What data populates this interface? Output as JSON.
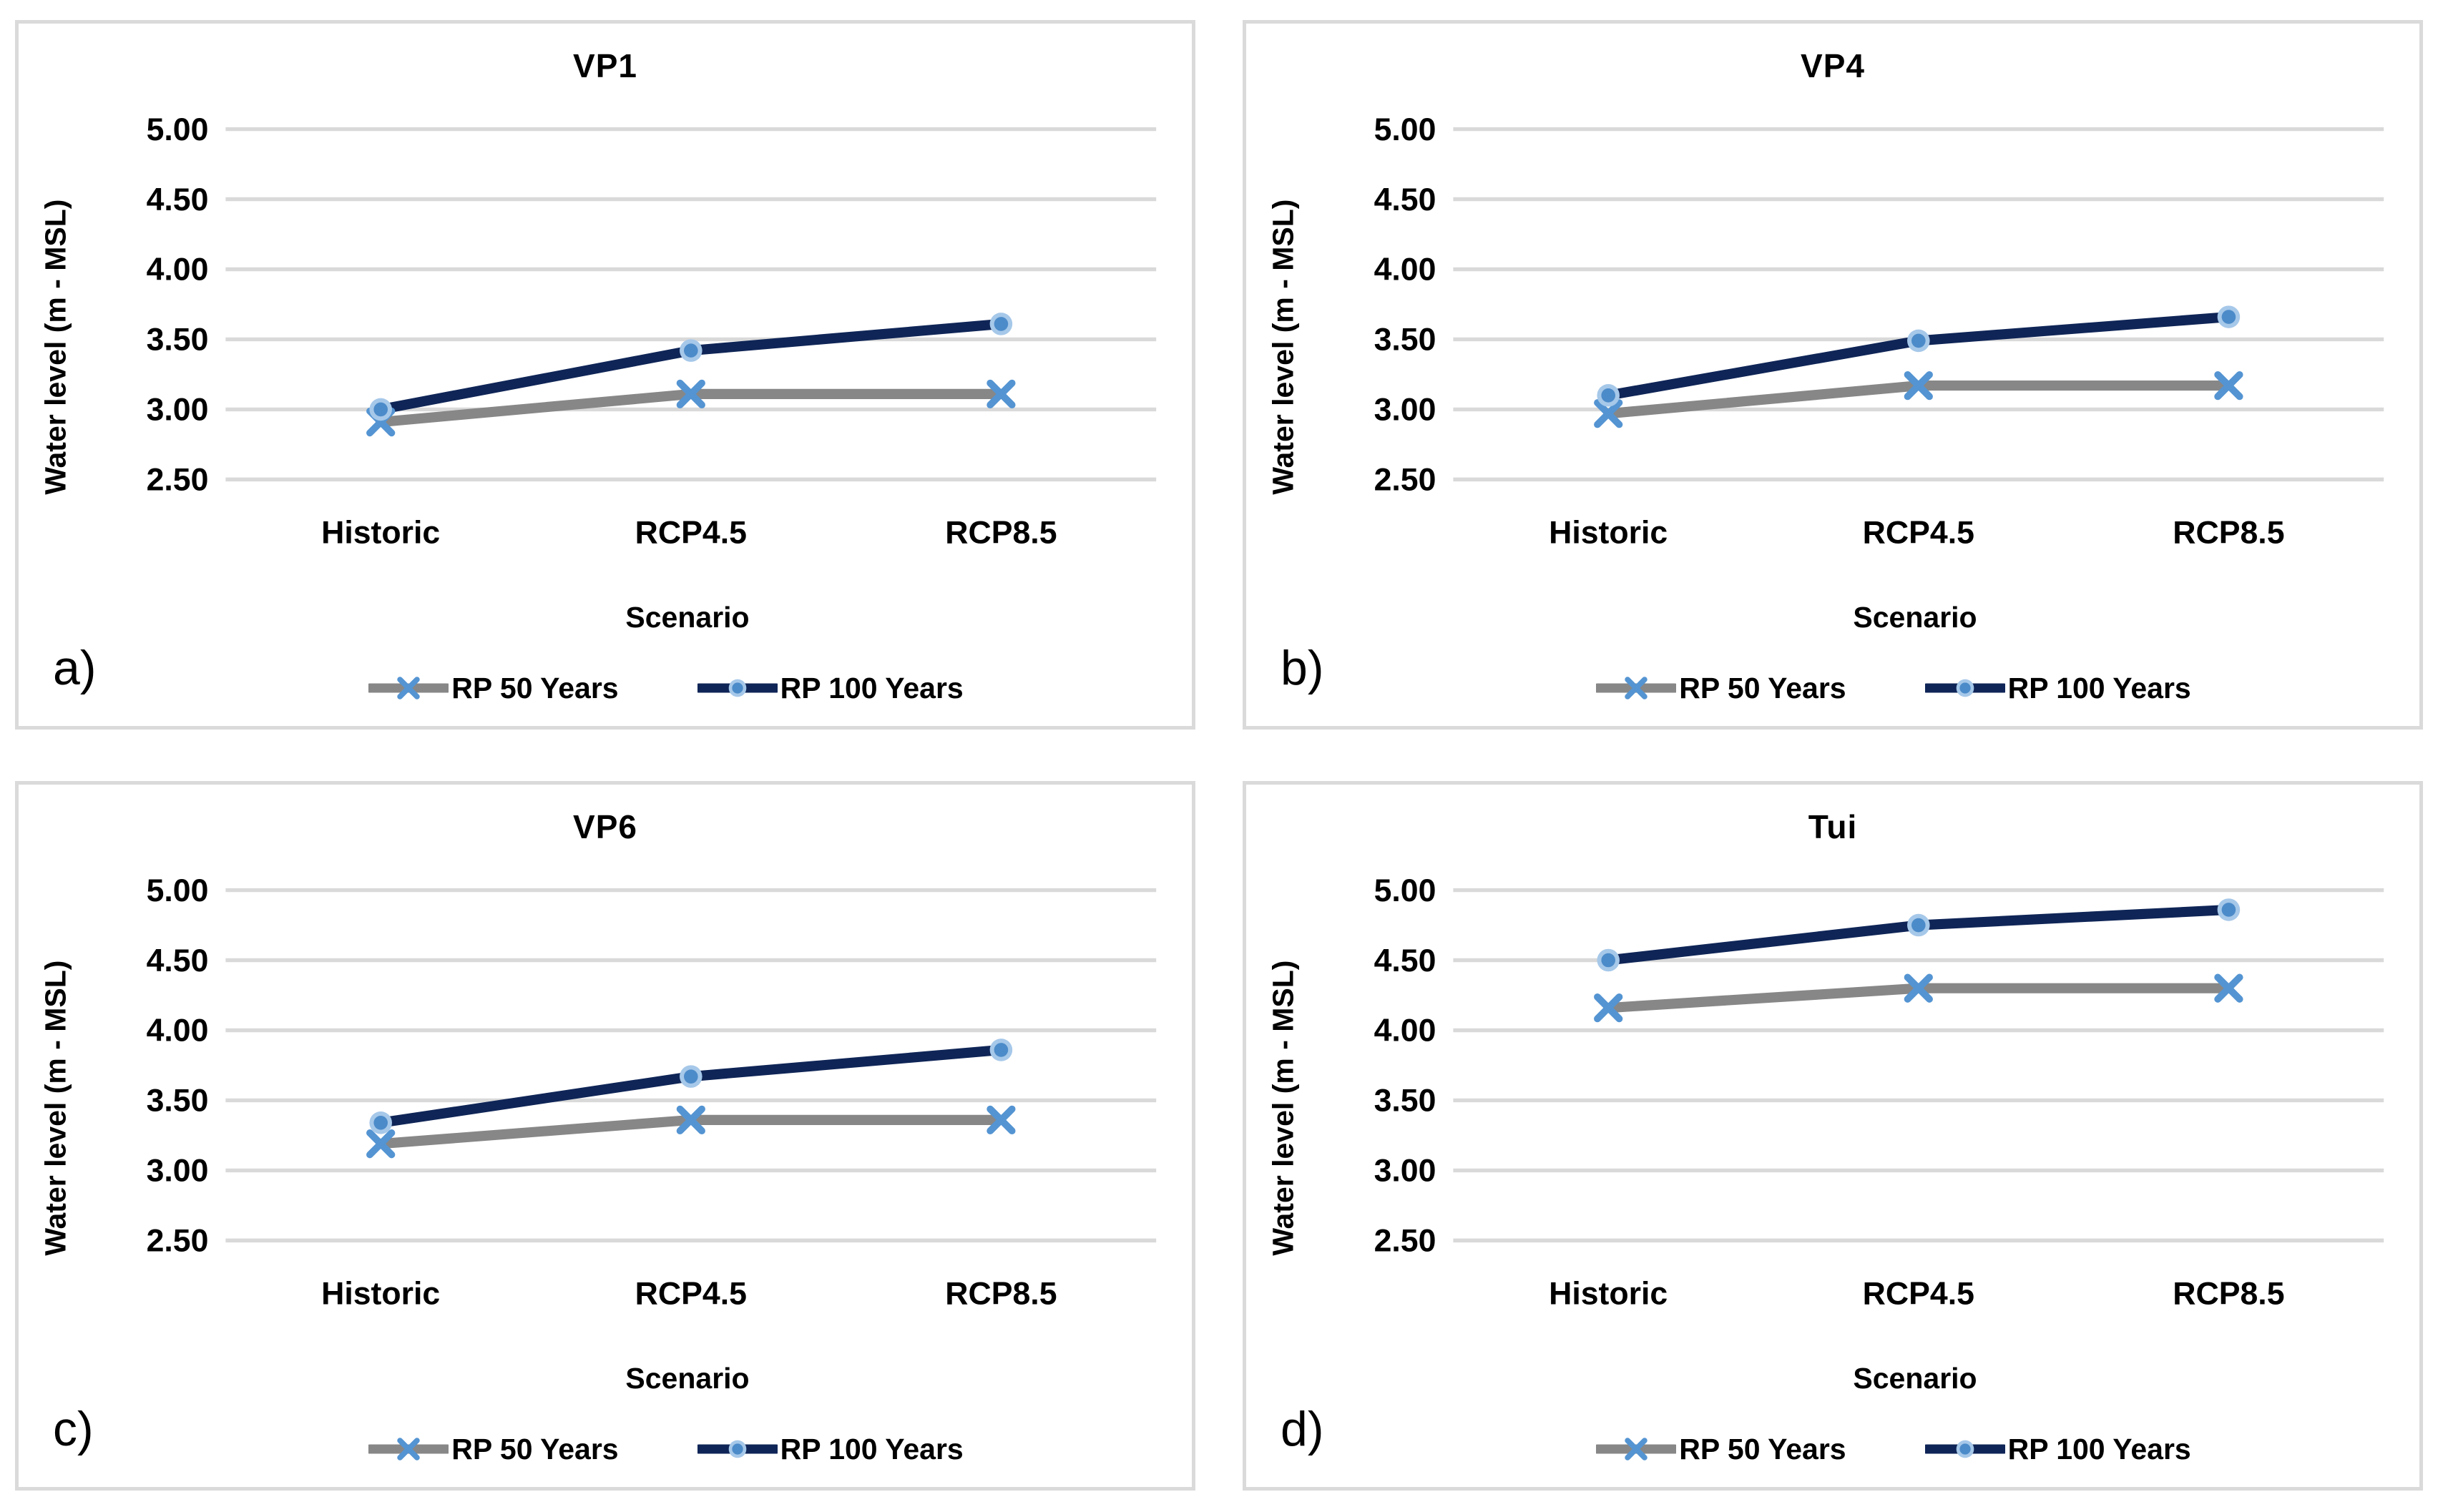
{
  "figure_colors": {
    "gridline": "#d9d9d9",
    "panel_border": "#dadada",
    "text": "#000000"
  },
  "chart_data": [
    {
      "type": "line",
      "panel_label": "a)",
      "title": "VP1",
      "categories": [
        "Historic",
        "RCP4.5",
        "RCP8.5"
      ],
      "series": [
        {
          "name": "RP 50 Years",
          "values": [
            2.91,
            3.11,
            3.11
          ],
          "color": "#878787",
          "marker": "x",
          "marker_color": "#5494d2"
        },
        {
          "name": "RP 100 Years",
          "values": [
            3.0,
            3.42,
            3.61
          ],
          "color": "#0f2557",
          "marker": "circle",
          "marker_fill": "#4c8bc9",
          "marker_ring": "#a6c8e9"
        }
      ],
      "xlabel": "Scenario",
      "ylabel": "Water level (m - MSL)",
      "ylim": [
        2.5,
        5.0
      ],
      "yticks": [
        2.5,
        3.0,
        3.5,
        4.0,
        4.5,
        5.0
      ],
      "grid": true,
      "legend_position": "bottom"
    },
    {
      "type": "line",
      "panel_label": "b)",
      "title": "VP4",
      "categories": [
        "Historic",
        "RCP4.5",
        "RCP8.5"
      ],
      "series": [
        {
          "name": "RP 50 Years",
          "values": [
            2.97,
            3.17,
            3.17
          ],
          "color": "#878787",
          "marker": "x",
          "marker_color": "#5494d2"
        },
        {
          "name": "RP 100 Years",
          "values": [
            3.1,
            3.49,
            3.66
          ],
          "color": "#0f2557",
          "marker": "circle",
          "marker_fill": "#4c8bc9",
          "marker_ring": "#a6c8e9"
        }
      ],
      "xlabel": "Scenario",
      "ylabel": "Water level (m - MSL)",
      "ylim": [
        2.5,
        5.0
      ],
      "yticks": [
        2.5,
        3.0,
        3.5,
        4.0,
        4.5,
        5.0
      ],
      "grid": true,
      "legend_position": "bottom"
    },
    {
      "type": "line",
      "panel_label": "c)",
      "title": "VP6",
      "categories": [
        "Historic",
        "RCP4.5",
        "RCP8.5"
      ],
      "series": [
        {
          "name": "RP 50 Years",
          "values": [
            3.19,
            3.36,
            3.36
          ],
          "color": "#878787",
          "marker": "x",
          "marker_color": "#5494d2"
        },
        {
          "name": "RP 100 Years",
          "values": [
            3.34,
            3.67,
            3.86
          ],
          "color": "#0f2557",
          "marker": "circle",
          "marker_fill": "#4c8bc9",
          "marker_ring": "#a6c8e9"
        }
      ],
      "xlabel": "Scenario",
      "ylabel": "Water level (m - MSL)",
      "ylim": [
        2.5,
        5.0
      ],
      "yticks": [
        2.5,
        3.0,
        3.5,
        4.0,
        4.5,
        5.0
      ],
      "grid": true,
      "legend_position": "bottom"
    },
    {
      "type": "line",
      "panel_label": "d)",
      "title": "Tui",
      "categories": [
        "Historic",
        "RCP4.5",
        "RCP8.5"
      ],
      "series": [
        {
          "name": "RP 50 Years",
          "values": [
            4.16,
            4.3,
            4.3
          ],
          "color": "#878787",
          "marker": "x",
          "marker_color": "#5494d2"
        },
        {
          "name": "RP 100 Years",
          "values": [
            4.5,
            4.75,
            4.86
          ],
          "color": "#0f2557",
          "marker": "circle",
          "marker_fill": "#4c8bc9",
          "marker_ring": "#a6c8e9"
        }
      ],
      "xlabel": "Scenario",
      "ylabel": "Water level (m - MSL)",
      "ylim": [
        2.5,
        5.0
      ],
      "yticks": [
        2.5,
        3.0,
        3.5,
        4.0,
        4.5,
        5.0
      ],
      "grid": true,
      "legend_position": "bottom"
    }
  ]
}
